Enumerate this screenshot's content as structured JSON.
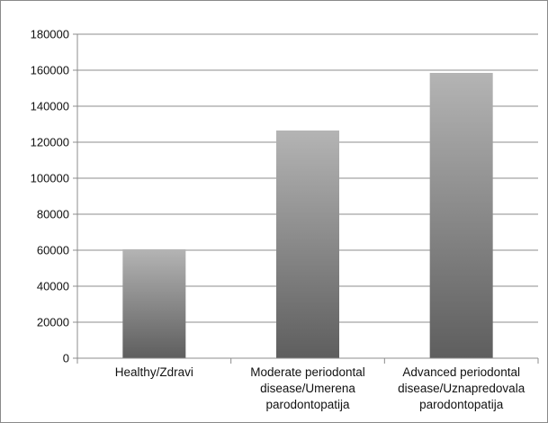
{
  "chart_data": {
    "type": "bar",
    "categories": [
      [
        "Healthy/Zdravi"
      ],
      [
        "Moderate periodontal",
        "disease/Umerena",
        "parodontopatija"
      ],
      [
        "Advanced periodontal",
        "disease/Uznapredovala",
        "parodontopatija"
      ]
    ],
    "values": [
      60500,
      126500,
      158500
    ],
    "ylim": [
      0,
      180000
    ],
    "yticks": [
      0,
      20000,
      40000,
      60000,
      80000,
      100000,
      120000,
      140000,
      160000,
      180000
    ],
    "grid": true,
    "legend": "none",
    "colors": {
      "bar_top": "#b4b4b4",
      "bar_bottom": "#5e5e5e",
      "grid": "#8c8c8c",
      "axis": "#8c8c8c"
    }
  }
}
